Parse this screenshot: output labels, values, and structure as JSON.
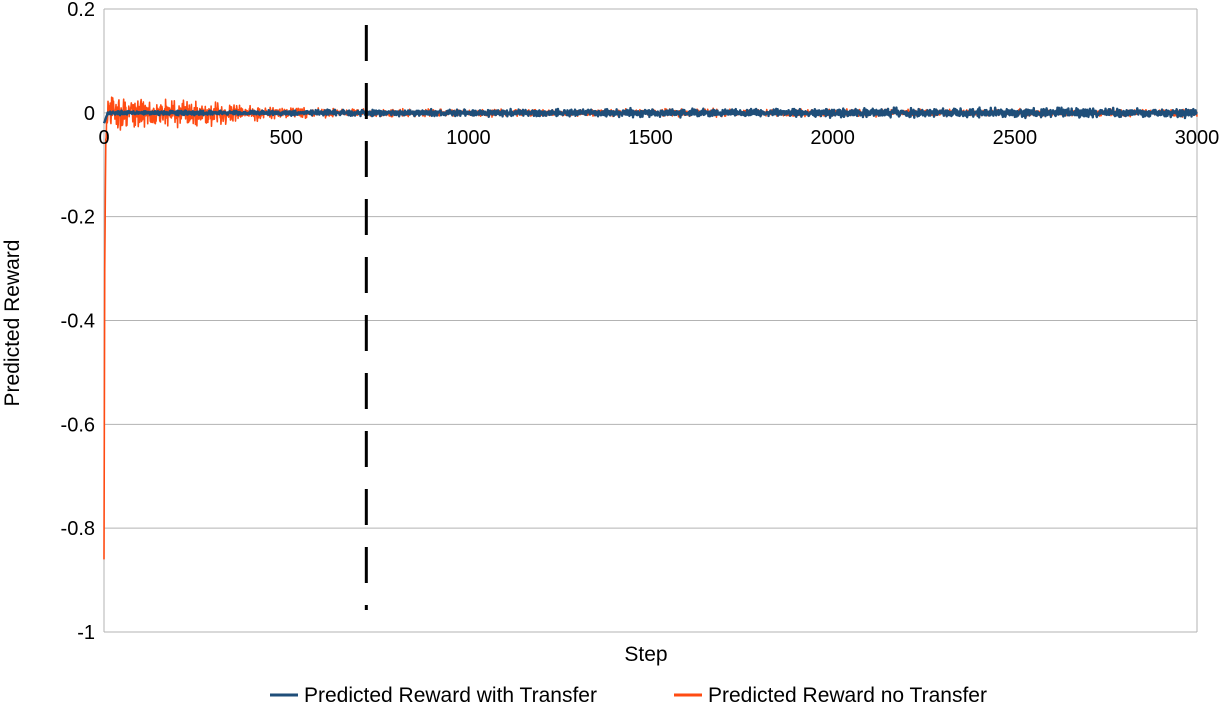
{
  "chart_data": {
    "type": "line",
    "title": "",
    "xlabel": "Step",
    "ylabel": "Predicted Reward",
    "xlim": [
      0,
      3000
    ],
    "ylim": [
      -1,
      0.2
    ],
    "x_ticks": [
      0,
      500,
      1000,
      1500,
      2000,
      2500,
      3000
    ],
    "x_tick_labels": [
      "0",
      "500",
      "1000",
      "1500",
      "2000",
      "2500",
      "3000"
    ],
    "y_ticks": [
      0.2,
      0,
      -0.2,
      -0.4,
      -0.6,
      -0.8,
      -1
    ],
    "y_tick_labels": [
      "0.2",
      "0",
      "-0.2",
      "-0.4",
      "-0.6",
      "-0.8",
      "-1"
    ],
    "grid": "horizontal",
    "legend_position": "bottom",
    "vertical_marker": {
      "x": 720,
      "style": "dashed",
      "color": "#000000"
    },
    "series": [
      {
        "name": "Predicted Reward with Transfer",
        "color": "#1f4e79",
        "x": [
          0,
          5,
          10,
          20,
          30,
          50,
          100,
          200,
          300,
          400,
          500,
          600,
          700,
          800,
          1000,
          1200,
          1400,
          1600,
          1800,
          2000,
          2200,
          2400,
          2600,
          2800,
          3000
        ],
        "y": [
          -0.02,
          -0.01,
          0.0,
          0.0,
          0.0,
          0.0,
          0.0,
          0.0,
          0.0,
          0.0,
          0.0,
          0.0,
          0.0,
          0.0,
          0.0,
          0.0,
          0.0,
          0.0,
          0.0,
          0.0,
          0.0,
          0.0,
          0.0,
          0.0,
          0.0
        ],
        "noise_amplitude": [
          0.002,
          0.003,
          0.004,
          0.005,
          0.005,
          0.005,
          0.005,
          0.006,
          0.006,
          0.006,
          0.007,
          0.007,
          0.008,
          0.008,
          0.009,
          0.009,
          0.01,
          0.01,
          0.01,
          0.011,
          0.011,
          0.011,
          0.012,
          0.012,
          0.012
        ]
      },
      {
        "name": "Predicted Reward no Transfer",
        "color": "#ff4b12",
        "x": [
          0,
          2,
          5,
          10,
          20,
          30,
          50,
          100,
          200,
          300,
          400,
          500,
          600,
          700,
          800,
          1000,
          1200,
          1400,
          1600,
          1800,
          2000,
          2200,
          2400,
          2600,
          2800,
          3000
        ],
        "y": [
          -0.86,
          -0.3,
          -0.05,
          0.0,
          0.0,
          0.0,
          0.0,
          0.0,
          0.0,
          0.0,
          0.0,
          0.0,
          0.0,
          0.0,
          0.0,
          0.0,
          0.0,
          0.0,
          0.0,
          0.0,
          0.0,
          0.0,
          0.0,
          0.0,
          0.0,
          0.0
        ],
        "noise_amplitude": [
          0.0,
          0.01,
          0.02,
          0.04,
          0.045,
          0.045,
          0.045,
          0.04,
          0.035,
          0.03,
          0.02,
          0.015,
          0.012,
          0.01,
          0.01,
          0.009,
          0.009,
          0.009,
          0.009,
          0.009,
          0.009,
          0.009,
          0.009,
          0.009,
          0.009,
          0.009
        ]
      }
    ]
  }
}
